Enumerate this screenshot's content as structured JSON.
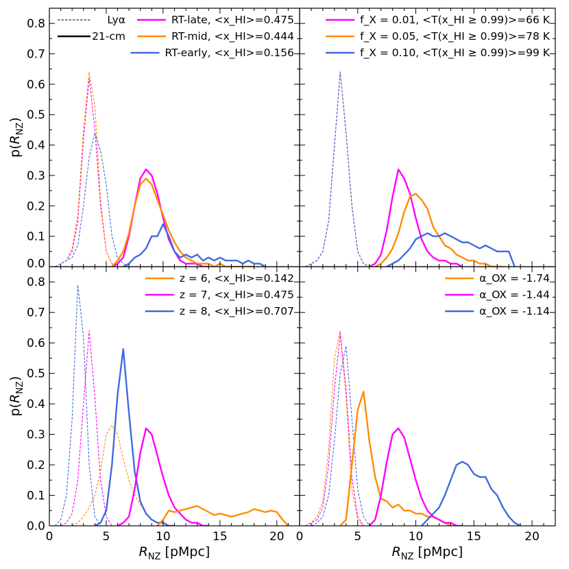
{
  "colors": {
    "magenta": "#FF00FF",
    "orange": "#FF8C00",
    "blue": "#4169E1",
    "black": "#000000"
  },
  "axes": {
    "xlabel": {
      "main": "R",
      "sub": "NZ",
      "unit": " [pMpc]"
    },
    "ylabel": {
      "pre": "p(",
      "main": "R",
      "sub": "NZ",
      "post": ")"
    },
    "xlim": [
      0,
      22
    ],
    "ylim": [
      0,
      0.85
    ],
    "xticks": [
      "0",
      "5",
      "10",
      "15",
      "20"
    ],
    "yticks": [
      "0.0",
      "0.1",
      "0.2",
      "0.3",
      "0.4",
      "0.5",
      "0.6",
      "0.7",
      "0.8"
    ]
  },
  "chart_data": [
    {
      "type": "line",
      "panel": "top-left",
      "xlabel": "",
      "ylabel": "p(R_NZ)",
      "style_legend": [
        {
          "label": "Lyα",
          "style": "dashed"
        },
        {
          "label": "21-cm",
          "style": "solid"
        }
      ],
      "legend": [
        {
          "label": "RT-late, <x_HI>=0.475",
          "color": "#FF00FF"
        },
        {
          "label": "RT-mid, <x_HI>=0.444",
          "color": "#FF8C00"
        },
        {
          "label": "RT-early, <x_HI>=0.156",
          "color": "#4169E1"
        }
      ],
      "series": [
        {
          "name": "RT-late Lyα",
          "color": "#FF00FF",
          "style": "dashed",
          "x": [
            0.5,
            1,
            1.5,
            2,
            2.5,
            3,
            3.5,
            4,
            4.5,
            5,
            5.5,
            6
          ],
          "y": [
            0,
            0.01,
            0.02,
            0.05,
            0.15,
            0.42,
            0.62,
            0.45,
            0.2,
            0.05,
            0.01,
            0
          ]
        },
        {
          "name": "RT-mid Lyα",
          "color": "#FF8C00",
          "style": "dashed",
          "x": [
            0.5,
            1,
            1.5,
            2,
            2.5,
            3,
            3.5,
            4,
            4.5,
            5,
            5.5,
            6
          ],
          "y": [
            0,
            0.01,
            0.02,
            0.06,
            0.17,
            0.45,
            0.64,
            0.53,
            0.22,
            0.05,
            0.01,
            0
          ]
        },
        {
          "name": "RT-early Lyα",
          "color": "#4169E1",
          "style": "dashed",
          "x": [
            0.5,
            1,
            1.5,
            2,
            2.5,
            3,
            3.5,
            4,
            4.5,
            5,
            5.5,
            6,
            6.5,
            7
          ],
          "y": [
            0,
            0.01,
            0.02,
            0.03,
            0.07,
            0.2,
            0.36,
            0.44,
            0.38,
            0.27,
            0.1,
            0.03,
            0.01,
            0
          ]
        },
        {
          "name": "RT-late 21-cm",
          "color": "#FF00FF",
          "style": "solid",
          "x": [
            5.5,
            6,
            6.5,
            7,
            7.5,
            8,
            8.5,
            9,
            9.5,
            10,
            10.5,
            11,
            11.5,
            12,
            12.5,
            13,
            13.5,
            14
          ],
          "y": [
            0,
            0.01,
            0.03,
            0.1,
            0.2,
            0.29,
            0.32,
            0.3,
            0.24,
            0.16,
            0.09,
            0.05,
            0.02,
            0.01,
            0.01,
            0.01,
            0,
            0
          ]
        },
        {
          "name": "RT-mid 21-cm",
          "color": "#FF8C00",
          "style": "solid",
          "x": [
            5.5,
            6,
            6.5,
            7,
            7.5,
            8,
            8.5,
            9,
            9.5,
            10,
            10.5,
            11,
            11.5,
            12,
            12.5,
            13,
            13.5,
            14,
            14.5,
            15,
            15.5,
            16,
            16.5,
            17,
            17.5,
            18
          ],
          "y": [
            0,
            0.02,
            0.05,
            0.11,
            0.2,
            0.27,
            0.29,
            0.27,
            0.22,
            0.17,
            0.12,
            0.08,
            0.05,
            0.03,
            0.02,
            0.01,
            0.01,
            0.01,
            0,
            0.01,
            0,
            0,
            0,
            0,
            0,
            0
          ]
        },
        {
          "name": "RT-early 21-cm",
          "color": "#4169E1",
          "style": "solid",
          "x": [
            6.5,
            7,
            7.5,
            8,
            8.5,
            9,
            9.5,
            10,
            10.5,
            11,
            11.5,
            12,
            12.5,
            13,
            13.5,
            14,
            14.5,
            15,
            15.5,
            16,
            16.5,
            17,
            17.5,
            18,
            18.5,
            19
          ],
          "y": [
            0,
            0.01,
            0.03,
            0.04,
            0.06,
            0.1,
            0.1,
            0.14,
            0.1,
            0.05,
            0.03,
            0.04,
            0.03,
            0.04,
            0.02,
            0.03,
            0.02,
            0.03,
            0.02,
            0.02,
            0.02,
            0.01,
            0.02,
            0.01,
            0.01,
            0
          ]
        }
      ]
    },
    {
      "type": "line",
      "panel": "top-right",
      "legend": [
        {
          "label": "f_X = 0.01, <T(x_HI ≥ 0.99)>=66 K",
          "color": "#FF00FF"
        },
        {
          "label": "f_X = 0.05, <T(x_HI ≥ 0.99)>=78 K",
          "color": "#FF8C00"
        },
        {
          "label": "f_X = 0.10, <T(x_HI ≥ 0.99)>=99 K",
          "color": "#4169E1"
        }
      ],
      "series": [
        {
          "name": "f_X 0.01 Lyα",
          "color": "#FF00FF",
          "style": "dashed",
          "x": [
            0.5,
            1,
            1.5,
            2,
            2.5,
            3,
            3.5,
            4,
            4.5,
            5,
            5.5,
            6
          ],
          "y": [
            0,
            0.01,
            0.02,
            0.05,
            0.15,
            0.4,
            0.64,
            0.44,
            0.2,
            0.05,
            0.01,
            0
          ]
        },
        {
          "name": "f_X 0.05 Lyα",
          "color": "#FF8C00",
          "style": "dashed",
          "x": [
            0.5,
            1,
            1.5,
            2,
            2.5,
            3,
            3.5,
            4,
            4.5,
            5,
            5.5,
            6
          ],
          "y": [
            0,
            0.01,
            0.02,
            0.05,
            0.15,
            0.4,
            0.64,
            0.44,
            0.2,
            0.05,
            0.01,
            0
          ]
        },
        {
          "name": "f_X 0.10 Lyα",
          "color": "#4169E1",
          "style": "dashed",
          "x": [
            0.5,
            1,
            1.5,
            2,
            2.5,
            3,
            3.5,
            4,
            4.5,
            5,
            5.5,
            6
          ],
          "y": [
            0,
            0.01,
            0.02,
            0.05,
            0.15,
            0.4,
            0.64,
            0.44,
            0.2,
            0.05,
            0.01,
            0
          ]
        },
        {
          "name": "f_X 0.01 21-cm",
          "color": "#FF00FF",
          "style": "solid",
          "x": [
            6,
            6.5,
            7,
            7.5,
            8,
            8.5,
            9,
            9.5,
            10,
            10.5,
            11,
            11.5,
            12,
            12.5,
            13,
            13.5,
            14
          ],
          "y": [
            0,
            0.01,
            0.04,
            0.12,
            0.23,
            0.32,
            0.29,
            0.24,
            0.16,
            0.09,
            0.05,
            0.03,
            0.02,
            0.02,
            0.01,
            0.01,
            0
          ]
        },
        {
          "name": "f_X 0.05 21-cm",
          "color": "#FF8C00",
          "style": "solid",
          "x": [
            6.5,
            7,
            7.5,
            8,
            8.5,
            9,
            9.5,
            10,
            10.5,
            11,
            11.5,
            12,
            12.5,
            13,
            13.5,
            14,
            14.5,
            15,
            15.5,
            16,
            16.5,
            17,
            17.5
          ],
          "y": [
            0,
            0.01,
            0.03,
            0.06,
            0.11,
            0.18,
            0.23,
            0.24,
            0.22,
            0.19,
            0.13,
            0.1,
            0.07,
            0.06,
            0.04,
            0.03,
            0.02,
            0.02,
            0.01,
            0.01,
            0,
            0,
            0
          ]
        },
        {
          "name": "f_X 0.10 21-cm",
          "color": "#4169E1",
          "style": "solid",
          "x": [
            7.5,
            8,
            8.5,
            9,
            9.5,
            10,
            10.5,
            11,
            11.5,
            12,
            12.5,
            13,
            13.5,
            14,
            14.5,
            15,
            15.5,
            16,
            16.5,
            17,
            17.5,
            18,
            18.5
          ],
          "y": [
            0,
            0.01,
            0.02,
            0.04,
            0.06,
            0.09,
            0.1,
            0.11,
            0.1,
            0.1,
            0.11,
            0.1,
            0.09,
            0.08,
            0.08,
            0.07,
            0.06,
            0.07,
            0.06,
            0.05,
            0.05,
            0.05,
            0
          ]
        }
      ]
    },
    {
      "type": "line",
      "panel": "bottom-left",
      "xlabel": "R_NZ [pMpc]",
      "ylabel": "p(R_NZ)",
      "legend": [
        {
          "label": "z = 6, <x_HI>=0.142",
          "color": "#FF8C00"
        },
        {
          "label": "z = 7, <x_HI>=0.475",
          "color": "#FF00FF"
        },
        {
          "label": "z = 8, <x_HI>=0.707",
          "color": "#4169E1"
        }
      ],
      "series": [
        {
          "name": "z=8 Lyα",
          "color": "#4169E1",
          "style": "dashed",
          "x": [
            0.5,
            1,
            1.5,
            2,
            2.5,
            3,
            3.5,
            4,
            4.5
          ],
          "y": [
            0,
            0.02,
            0.1,
            0.35,
            0.79,
            0.62,
            0.2,
            0.03,
            0
          ]
        },
        {
          "name": "z=7 Lyα",
          "color": "#FF00FF",
          "style": "dashed",
          "x": [
            1,
            1.5,
            2,
            2.5,
            3,
            3.5,
            4,
            4.5,
            5,
            5.5
          ],
          "y": [
            0,
            0.01,
            0.04,
            0.15,
            0.4,
            0.64,
            0.42,
            0.15,
            0.03,
            0
          ]
        },
        {
          "name": "z=6 Lyα",
          "color": "#FF8C00",
          "style": "dashed",
          "x": [
            2,
            2.5,
            3,
            3.5,
            4,
            4.5,
            5,
            5.5,
            6,
            6.5,
            7,
            7.5,
            8,
            8.5,
            9,
            9.5,
            10,
            10.5
          ],
          "y": [
            0,
            0.01,
            0.03,
            0.06,
            0.1,
            0.18,
            0.3,
            0.33,
            0.3,
            0.22,
            0.15,
            0.1,
            0.07,
            0.04,
            0.02,
            0.01,
            0.01,
            0
          ]
        },
        {
          "name": "z=8 21-cm",
          "color": "#4169E1",
          "style": "solid",
          "x": [
            4,
            4.5,
            5,
            5.5,
            6,
            6.5,
            7,
            7.5,
            8,
            8.5,
            9,
            9.5,
            10,
            10.5,
            11
          ],
          "y": [
            0,
            0.01,
            0.05,
            0.2,
            0.43,
            0.58,
            0.37,
            0.18,
            0.08,
            0.04,
            0.02,
            0.01,
            0.01,
            0,
            0
          ]
        },
        {
          "name": "z=7 21-cm",
          "color": "#FF00FF",
          "style": "solid",
          "x": [
            6,
            6.5,
            7,
            7.5,
            8,
            8.5,
            9,
            9.5,
            10,
            10.5,
            11,
            11.5,
            12,
            12.5,
            13,
            13.5,
            14
          ],
          "y": [
            0,
            0.01,
            0.03,
            0.12,
            0.24,
            0.32,
            0.3,
            0.23,
            0.16,
            0.1,
            0.06,
            0.04,
            0.02,
            0.01,
            0.01,
            0,
            0
          ]
        },
        {
          "name": "z=6 21-cm",
          "color": "#FF8C00",
          "style": "solid",
          "x": [
            9.5,
            10,
            10.5,
            11,
            11.5,
            12,
            12.5,
            13,
            13.5,
            14,
            14.5,
            15,
            15.5,
            16,
            16.5,
            17,
            17.5,
            18,
            18.5,
            19,
            19.5,
            20,
            20.5,
            21
          ],
          "y": [
            0,
            0.02,
            0.05,
            0.045,
            0.05,
            0.055,
            0.06,
            0.065,
            0.055,
            0.045,
            0.035,
            0.04,
            0.035,
            0.03,
            0.035,
            0.04,
            0.045,
            0.055,
            0.05,
            0.045,
            0.05,
            0.045,
            0.02,
            0
          ]
        }
      ]
    },
    {
      "type": "line",
      "panel": "bottom-right",
      "xlabel": "R_NZ [pMpc]",
      "legend": [
        {
          "label": "α_OX = -1.74",
          "color": "#FF8C00"
        },
        {
          "label": "α_OX = -1.44",
          "color": "#FF00FF"
        },
        {
          "label": "α_OX = -1.14",
          "color": "#4169E1"
        }
      ],
      "series": [
        {
          "name": "α_OX -1.74 Lyα",
          "color": "#FF8C00",
          "style": "dashed",
          "x": [
            0.5,
            1,
            1.5,
            2,
            2.5,
            3,
            3.5,
            4,
            4.5,
            5,
            5.5
          ],
          "y": [
            0,
            0.01,
            0.03,
            0.08,
            0.25,
            0.55,
            0.64,
            0.42,
            0.12,
            0.02,
            0
          ]
        },
        {
          "name": "α_OX -1.44 Lyα",
          "color": "#FF00FF",
          "style": "dashed",
          "x": [
            0.5,
            1,
            1.5,
            2,
            2.5,
            3,
            3.5,
            4,
            4.5,
            5,
            5.5
          ],
          "y": [
            0,
            0.01,
            0.02,
            0.06,
            0.2,
            0.45,
            0.63,
            0.45,
            0.16,
            0.03,
            0
          ]
        },
        {
          "name": "α_OX -1.14 Lyα",
          "color": "#4169E1",
          "style": "dashed",
          "x": [
            1,
            1.5,
            2,
            2.5,
            3,
            3.5,
            4,
            4.5,
            5,
            5.5,
            6
          ],
          "y": [
            0,
            0.01,
            0.03,
            0.1,
            0.28,
            0.5,
            0.59,
            0.35,
            0.12,
            0.03,
            0
          ]
        },
        {
          "name": "α_OX -1.74 21-cm",
          "color": "#FF8C00",
          "style": "solid",
          "x": [
            3.5,
            4,
            4.5,
            5,
            5.5,
            6,
            6.5,
            7,
            7.5,
            8,
            8.5,
            9,
            9.5,
            10,
            10.5,
            11,
            11.5,
            12,
            12.5,
            13
          ],
          "y": [
            0,
            0.02,
            0.2,
            0.38,
            0.44,
            0.28,
            0.16,
            0.09,
            0.08,
            0.06,
            0.07,
            0.05,
            0.05,
            0.04,
            0.04,
            0.03,
            0.03,
            0.02,
            0.01,
            0
          ]
        },
        {
          "name": "α_OX -1.44 21-cm",
          "color": "#FF00FF",
          "style": "solid",
          "x": [
            6,
            6.5,
            7,
            7.5,
            8,
            8.5,
            9,
            9.5,
            10,
            10.5,
            11,
            11.5,
            12,
            12.5,
            13,
            13.5,
            14
          ],
          "y": [
            0,
            0.02,
            0.1,
            0.21,
            0.3,
            0.32,
            0.29,
            0.22,
            0.15,
            0.09,
            0.05,
            0.03,
            0.02,
            0.01,
            0.01,
            0,
            0
          ]
        },
        {
          "name": "α_OX -1.14 21-cm",
          "color": "#4169E1",
          "style": "solid",
          "x": [
            10.5,
            11,
            11.5,
            12,
            12.5,
            13,
            13.5,
            14,
            14.5,
            15,
            15.5,
            16,
            16.5,
            17,
            17.5,
            18,
            18.5,
            19
          ],
          "y": [
            0,
            0.02,
            0.04,
            0.06,
            0.1,
            0.15,
            0.2,
            0.21,
            0.2,
            0.17,
            0.16,
            0.16,
            0.12,
            0.1,
            0.06,
            0.03,
            0.01,
            0
          ]
        }
      ]
    }
  ]
}
